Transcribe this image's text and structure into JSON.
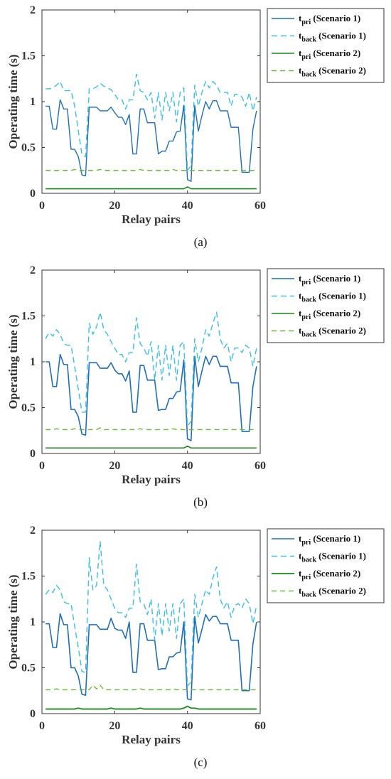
{
  "chart_data": [
    {
      "type": "line",
      "panel": "(a)",
      "caption": "(a)",
      "xlabel": "Relay pairs",
      "ylabel": "Operating time (s)",
      "xlim": [
        0,
        60
      ],
      "ylim": [
        0,
        2
      ],
      "xticks": [
        "0",
        "20",
        "40",
        "60"
      ],
      "yticks": [
        "0",
        "0.5",
        "1",
        "1.5",
        "2"
      ],
      "grid": false,
      "legend_position": "outside-right",
      "x": [
        1,
        2,
        3,
        4,
        5,
        6,
        7,
        8,
        9,
        10,
        11,
        12,
        13,
        14,
        15,
        16,
        17,
        18,
        19,
        20,
        21,
        22,
        23,
        24,
        25,
        26,
        27,
        28,
        29,
        30,
        31,
        32,
        33,
        34,
        35,
        36,
        37,
        38,
        39,
        40,
        41,
        42,
        43,
        44,
        45,
        46,
        47,
        48,
        49,
        50,
        51,
        52,
        53,
        54,
        55,
        56,
        57,
        58,
        59
      ],
      "series": [
        {
          "legend_main": "t",
          "legend_sub": "pri",
          "legend_rest": " (Scenario 1)",
          "color": "#1f6fb8",
          "dash": "solid",
          "width": 1.4,
          "values": [
            0.95,
            0.95,
            0.7,
            0.7,
            1.02,
            0.92,
            0.92,
            0.48,
            0.48,
            0.4,
            0.2,
            0.19,
            0.94,
            0.94,
            0.94,
            0.9,
            0.9,
            0.9,
            0.94,
            0.88,
            0.83,
            0.83,
            0.75,
            0.86,
            0.43,
            0.43,
            0.92,
            0.92,
            0.77,
            0.77,
            0.77,
            0.43,
            0.46,
            0.46,
            0.57,
            0.57,
            0.67,
            0.68,
            0.96,
            0.15,
            0.13,
            0.96,
            0.68,
            0.85,
            1.0,
            0.92,
            1.01,
            1.01,
            0.9,
            0.9,
            0.9,
            0.72,
            0.72,
            0.72,
            0.23,
            0.23,
            0.23,
            0.7,
            0.9
          ]
        },
        {
          "legend_main": "t",
          "legend_sub": "back",
          "legend_rest": " (Scenario 1)",
          "color": "#38bfe6",
          "dash": "8,5",
          "width": 1.4,
          "values": [
            1.14,
            1.14,
            1.15,
            1.18,
            1.22,
            1.12,
            1.12,
            1.12,
            0.95,
            0.68,
            0.42,
            0.4,
            1.14,
            1.14,
            1.16,
            1.2,
            1.17,
            1.15,
            1.13,
            1.08,
            1.02,
            1.02,
            0.92,
            1.02,
            1.02,
            1.3,
            1.12,
            1.1,
            1.02,
            1.1,
            0.82,
            1.1,
            0.8,
            1.1,
            0.9,
            1.1,
            0.78,
            1.1,
            1.15,
            0.25,
            0.3,
            1.18,
            0.95,
            1.1,
            1.22,
            1.15,
            1.22,
            1.18,
            1.1,
            1.1,
            1.1,
            0.95,
            1.08,
            1.08,
            1.05,
            0.95,
            1.1,
            0.9,
            1.05
          ]
        },
        {
          "legend_main": "t",
          "legend_sub": "pri",
          "legend_rest": " (Scenario 2)",
          "color": "#178a17",
          "dash": "solid",
          "width": 1.6,
          "values": [
            0.05,
            0.05,
            0.05,
            0.05,
            0.05,
            0.05,
            0.05,
            0.05,
            0.05,
            0.05,
            0.05,
            0.05,
            0.05,
            0.05,
            0.05,
            0.05,
            0.05,
            0.05,
            0.05,
            0.05,
            0.05,
            0.05,
            0.05,
            0.05,
            0.05,
            0.05,
            0.05,
            0.05,
            0.05,
            0.05,
            0.05,
            0.05,
            0.05,
            0.05,
            0.05,
            0.05,
            0.05,
            0.05,
            0.05,
            0.07,
            0.05,
            0.05,
            0.05,
            0.05,
            0.05,
            0.05,
            0.05,
            0.05,
            0.05,
            0.05,
            0.05,
            0.05,
            0.05,
            0.05,
            0.05,
            0.05,
            0.05,
            0.05,
            0.05
          ]
        },
        {
          "legend_main": "t",
          "legend_sub": "back",
          "legend_rest": " (Scenario 2)",
          "color": "#66bb33",
          "dash": "7,5",
          "width": 1.4,
          "values": [
            0.25,
            0.25,
            0.25,
            0.25,
            0.25,
            0.25,
            0.25,
            0.25,
            0.26,
            0.25,
            0.25,
            0.25,
            0.25,
            0.25,
            0.25,
            0.26,
            0.25,
            0.25,
            0.25,
            0.25,
            0.25,
            0.25,
            0.25,
            0.25,
            0.25,
            0.25,
            0.26,
            0.25,
            0.25,
            0.25,
            0.25,
            0.25,
            0.25,
            0.25,
            0.25,
            0.26,
            0.25,
            0.25,
            0.25,
            0.25,
            0.25,
            0.25,
            0.25,
            0.25,
            0.25,
            0.25,
            0.25,
            0.25,
            0.25,
            0.25,
            0.25,
            0.25,
            0.25,
            0.25,
            0.25,
            0.25,
            0.25,
            0.25,
            0.25
          ]
        }
      ]
    },
    {
      "type": "line",
      "panel": "(b)",
      "caption": "(b)",
      "xlabel": "Relay pairs",
      "ylabel": "Operating time (s)",
      "xlim": [
        0,
        60
      ],
      "ylim": [
        0,
        2
      ],
      "xticks": [
        "0",
        "20",
        "40",
        "60"
      ],
      "yticks": [
        "0",
        "0.5",
        "1",
        "1.5",
        "2"
      ],
      "grid": false,
      "legend_position": "outside-right",
      "x": [
        1,
        2,
        3,
        4,
        5,
        6,
        7,
        8,
        9,
        10,
        11,
        12,
        13,
        14,
        15,
        16,
        17,
        18,
        19,
        20,
        21,
        22,
        23,
        24,
        25,
        26,
        27,
        28,
        29,
        30,
        31,
        32,
        33,
        34,
        35,
        36,
        37,
        38,
        39,
        40,
        41,
        42,
        43,
        44,
        45,
        46,
        47,
        48,
        49,
        50,
        51,
        52,
        53,
        54,
        55,
        56,
        57,
        58,
        59
      ],
      "series": [
        {
          "legend_main": "t",
          "legend_sub": "pri",
          "legend_rest": " (Scenario 1)",
          "color": "#1f6fb8",
          "dash": "solid",
          "width": 1.6,
          "values": [
            1.0,
            1.0,
            0.73,
            0.73,
            1.08,
            0.97,
            0.97,
            0.48,
            0.48,
            0.4,
            0.21,
            0.2,
            0.99,
            0.99,
            0.99,
            0.93,
            0.93,
            0.93,
            0.99,
            0.91,
            0.87,
            0.87,
            0.79,
            0.9,
            0.45,
            0.45,
            0.96,
            0.96,
            0.8,
            0.8,
            0.8,
            0.47,
            0.48,
            0.48,
            0.6,
            0.6,
            0.67,
            0.68,
            1.02,
            0.16,
            0.14,
            1.06,
            0.73,
            0.9,
            1.06,
            0.97,
            1.06,
            1.06,
            0.95,
            0.95,
            0.95,
            0.77,
            0.77,
            0.77,
            0.24,
            0.24,
            0.24,
            0.73,
            0.95
          ]
        },
        {
          "legend_main": "t",
          "legend_sub": "back",
          "legend_rest": " (Scenario 1)",
          "color": "#38bfe6",
          "dash": "8,5",
          "width": 1.4,
          "values": [
            1.25,
            1.32,
            1.28,
            1.35,
            1.3,
            1.2,
            1.18,
            1.18,
            0.95,
            0.7,
            0.45,
            0.45,
            1.42,
            1.3,
            1.38,
            1.54,
            1.35,
            1.3,
            1.22,
            1.15,
            1.08,
            1.08,
            1.0,
            1.1,
            1.1,
            1.48,
            1.2,
            1.15,
            1.06,
            1.22,
            0.8,
            1.18,
            0.8,
            1.18,
            0.85,
            1.18,
            0.8,
            1.18,
            1.22,
            0.3,
            0.35,
            1.25,
            1.0,
            1.15,
            1.35,
            1.28,
            1.42,
            1.54,
            1.25,
            1.15,
            1.2,
            1.0,
            1.15,
            1.15,
            1.1,
            1.18,
            1.15,
            0.95,
            1.15
          ]
        },
        {
          "legend_main": "t",
          "legend_sub": "pri",
          "legend_rest": " (Scenario 2)",
          "color": "#178a17",
          "dash": "solid",
          "width": 1.6,
          "values": [
            0.06,
            0.06,
            0.06,
            0.06,
            0.06,
            0.06,
            0.06,
            0.06,
            0.06,
            0.06,
            0.06,
            0.06,
            0.06,
            0.06,
            0.06,
            0.06,
            0.06,
            0.06,
            0.06,
            0.06,
            0.06,
            0.06,
            0.06,
            0.06,
            0.06,
            0.06,
            0.06,
            0.06,
            0.06,
            0.06,
            0.06,
            0.06,
            0.06,
            0.06,
            0.06,
            0.06,
            0.06,
            0.06,
            0.06,
            0.08,
            0.06,
            0.06,
            0.06,
            0.06,
            0.06,
            0.06,
            0.06,
            0.06,
            0.06,
            0.06,
            0.06,
            0.06,
            0.06,
            0.06,
            0.06,
            0.06,
            0.06,
            0.06,
            0.06
          ]
        },
        {
          "legend_main": "t",
          "legend_sub": "back",
          "legend_rest": " (Scenario 2)",
          "color": "#66bb33",
          "dash": "7,5",
          "width": 1.4,
          "values": [
            0.26,
            0.26,
            0.26,
            0.27,
            0.26,
            0.26,
            0.26,
            0.26,
            0.27,
            0.26,
            0.26,
            0.26,
            0.26,
            0.26,
            0.26,
            0.28,
            0.26,
            0.26,
            0.26,
            0.26,
            0.26,
            0.26,
            0.26,
            0.26,
            0.26,
            0.26,
            0.27,
            0.26,
            0.26,
            0.26,
            0.26,
            0.26,
            0.26,
            0.26,
            0.26,
            0.27,
            0.26,
            0.26,
            0.26,
            0.26,
            0.26,
            0.26,
            0.26,
            0.26,
            0.26,
            0.26,
            0.26,
            0.26,
            0.26,
            0.26,
            0.26,
            0.26,
            0.26,
            0.26,
            0.26,
            0.26,
            0.26,
            0.26,
            0.26
          ]
        }
      ]
    },
    {
      "type": "line",
      "panel": "(c)",
      "caption": "(c)",
      "xlabel": "Relay pairs",
      "ylabel": "Operating time (s)",
      "xlim": [
        0,
        60
      ],
      "ylim": [
        0,
        2
      ],
      "xticks": [
        "0",
        "20",
        "40",
        "60"
      ],
      "yticks": [
        "0",
        "0.5",
        "1",
        "1.5",
        "2"
      ],
      "grid": false,
      "legend_position": "outside-right",
      "x": [
        1,
        2,
        3,
        4,
        5,
        6,
        7,
        8,
        9,
        10,
        11,
        12,
        13,
        14,
        15,
        16,
        17,
        18,
        19,
        20,
        21,
        22,
        23,
        24,
        25,
        26,
        27,
        28,
        29,
        30,
        31,
        32,
        33,
        34,
        35,
        36,
        37,
        38,
        39,
        40,
        41,
        42,
        43,
        44,
        45,
        46,
        47,
        48,
        49,
        50,
        51,
        52,
        53,
        54,
        55,
        56,
        57,
        58,
        59
      ],
      "series": [
        {
          "legend_main": "t",
          "legend_sub": "pri",
          "legend_rest": " (Scenario 1)",
          "color": "#1f6fb8",
          "dash": "solid",
          "width": 1.6,
          "values": [
            0.98,
            0.98,
            0.72,
            0.72,
            1.09,
            0.97,
            0.97,
            0.5,
            0.5,
            0.41,
            0.21,
            0.2,
            0.97,
            0.97,
            0.97,
            0.92,
            0.92,
            0.92,
            1.04,
            0.93,
            0.91,
            0.91,
            0.82,
            1.0,
            0.45,
            0.45,
            0.98,
            0.98,
            0.8,
            0.8,
            0.8,
            0.48,
            0.49,
            0.49,
            0.62,
            0.62,
            0.66,
            0.67,
            1.0,
            0.16,
            0.15,
            1.06,
            0.77,
            0.92,
            1.08,
            1.01,
            1.06,
            1.06,
            0.98,
            0.98,
            0.98,
            0.8,
            0.8,
            0.8,
            0.25,
            0.25,
            0.25,
            0.76,
            1.0
          ]
        },
        {
          "legend_main": "t",
          "legend_sub": "back",
          "legend_rest": " (Scenario 1)",
          "color": "#38bfe6",
          "dash": "8,5",
          "width": 1.4,
          "values": [
            1.3,
            1.35,
            1.32,
            1.4,
            1.35,
            1.22,
            1.2,
            1.2,
            0.95,
            0.72,
            0.46,
            0.45,
            1.7,
            1.35,
            1.4,
            1.88,
            1.4,
            1.35,
            1.25,
            1.15,
            1.1,
            1.1,
            1.05,
            1.15,
            1.15,
            1.63,
            1.22,
            1.2,
            1.08,
            1.25,
            0.8,
            1.2,
            0.85,
            1.2,
            0.9,
            1.2,
            0.82,
            1.2,
            1.25,
            0.3,
            0.35,
            1.3,
            1.05,
            1.2,
            1.35,
            1.3,
            1.48,
            1.6,
            1.25,
            1.15,
            1.22,
            1.05,
            1.18,
            1.2,
            1.15,
            1.25,
            1.2,
            0.98,
            1.18
          ]
        },
        {
          "legend_main": "t",
          "legend_sub": "pri",
          "legend_rest": " (Scenario 2)",
          "color": "#178a17",
          "dash": "solid",
          "width": 1.8,
          "values": [
            0.05,
            0.05,
            0.05,
            0.05,
            0.05,
            0.05,
            0.05,
            0.05,
            0.05,
            0.06,
            0.05,
            0.05,
            0.05,
            0.05,
            0.05,
            0.05,
            0.05,
            0.05,
            0.06,
            0.05,
            0.05,
            0.05,
            0.05,
            0.05,
            0.05,
            0.05,
            0.06,
            0.05,
            0.05,
            0.05,
            0.05,
            0.05,
            0.05,
            0.05,
            0.05,
            0.05,
            0.05,
            0.05,
            0.06,
            0.08,
            0.06,
            0.06,
            0.05,
            0.05,
            0.05,
            0.05,
            0.05,
            0.05,
            0.05,
            0.05,
            0.05,
            0.05,
            0.05,
            0.05,
            0.05,
            0.05,
            0.05,
            0.05,
            0.05
          ]
        },
        {
          "legend_main": "t",
          "legend_sub": "back",
          "legend_rest": " (Scenario 2)",
          "color": "#66bb33",
          "dash": "7,5",
          "width": 1.4,
          "values": [
            0.26,
            0.26,
            0.26,
            0.27,
            0.26,
            0.26,
            0.26,
            0.26,
            0.26,
            0.26,
            0.26,
            0.26,
            0.26,
            0.31,
            0.27,
            0.31,
            0.26,
            0.26,
            0.26,
            0.26,
            0.26,
            0.26,
            0.26,
            0.26,
            0.26,
            0.26,
            0.27,
            0.26,
            0.26,
            0.26,
            0.26,
            0.26,
            0.26,
            0.26,
            0.26,
            0.27,
            0.26,
            0.26,
            0.26,
            0.26,
            0.26,
            0.26,
            0.26,
            0.26,
            0.26,
            0.26,
            0.26,
            0.26,
            0.26,
            0.26,
            0.26,
            0.26,
            0.26,
            0.26,
            0.26,
            0.26,
            0.26,
            0.26,
            0.26
          ]
        }
      ]
    }
  ]
}
